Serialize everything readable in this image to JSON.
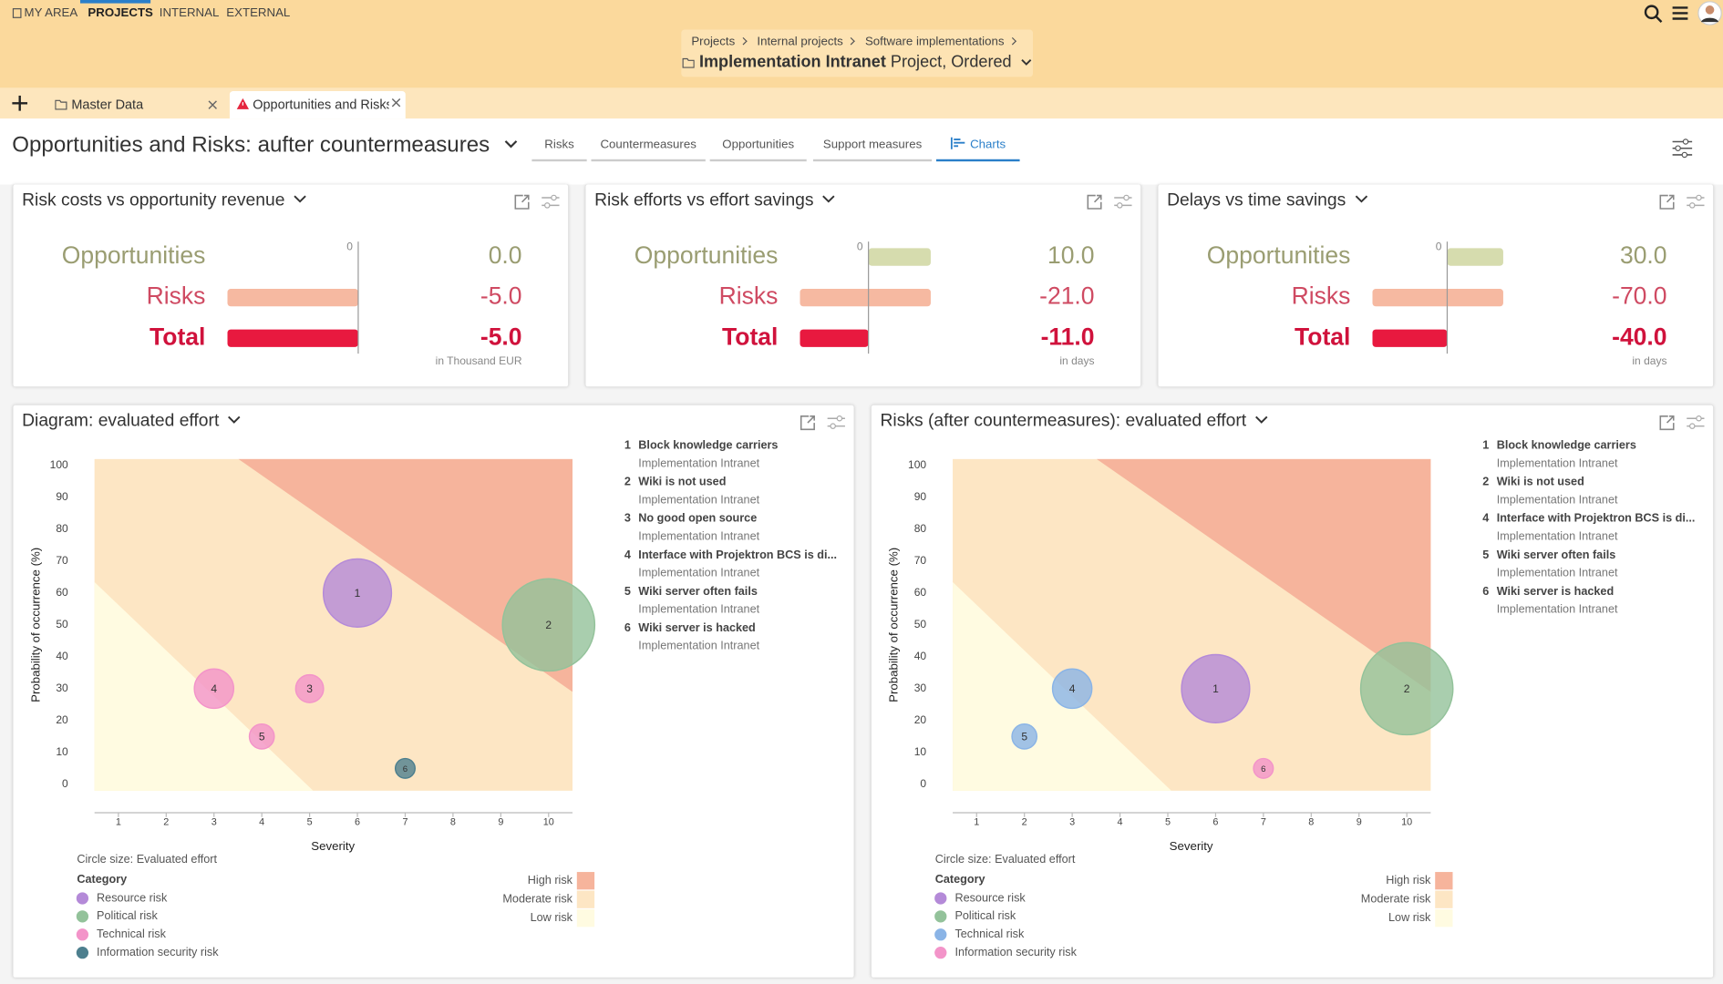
{
  "nav": {
    "items": [
      "MY AREA",
      "PROJECTS",
      "INTERNAL",
      "EXTERNAL"
    ]
  },
  "breadcrumb": [
    "Projects",
    "Internal projects",
    "Software implementations"
  ],
  "project": {
    "name": "Implementation Intranet",
    "details": "Project, Ordered"
  },
  "tabs": [
    "Master Data",
    "Opportunities and Risks"
  ],
  "page_title": "Opportunities and Risks: aufter countermeasures",
  "view_tabs": [
    "Risks",
    "Countermeasures",
    "Opportunities",
    "Support measures",
    "Charts"
  ],
  "summary_panels": [
    {
      "title": "Risk costs vs opportunity revenue",
      "rows": [
        "Opportunities",
        "Risks",
        "Total"
      ],
      "values": [
        0,
        -5,
        -5
      ],
      "value_labels": [
        "0.0",
        "-5.0",
        "-5.0"
      ],
      "axis_label": 0,
      "unit": "in Thousand EUR"
    },
    {
      "title": "Risk efforts vs effort savings",
      "rows": [
        "Opportunities",
        "Risks",
        "Total"
      ],
      "values": [
        10,
        -21,
        -11
      ],
      "value_labels": [
        "10.0",
        "-21.0",
        "-11.0"
      ],
      "axis_label": 0,
      "unit": "in days"
    },
    {
      "title": "Delays vs time savings",
      "rows": [
        "Opportunities",
        "Risks",
        "Total"
      ],
      "values": [
        30,
        -70,
        -40
      ],
      "value_labels": [
        "30.0",
        "-70.0",
        "-40.0"
      ],
      "axis_label": 0,
      "unit": "in days"
    }
  ],
  "charts": [
    {
      "type": "bubble",
      "title": "Diagram: evaluated effort",
      "xlabel": "Severity",
      "ylabel": "Probability of occurrence (%)",
      "size_label": "Circle size: Evaluated effort",
      "legend_title": "Category",
      "categories": [
        {
          "name": "Resource risk",
          "color": "#b48ad8"
        },
        {
          "name": "Political risk",
          "color": "#93c29a"
        },
        {
          "name": "Technical risk",
          "color": "#f394c9"
        },
        {
          "name": "Information security risk",
          "color": "#4d7f8e"
        }
      ],
      "zones": [
        "High risk",
        "Moderate risk",
        "Low risk"
      ],
      "zone_colors": [
        "#f6b49c",
        "#fde6c4",
        "#fffbe1"
      ],
      "xlim": [
        0.5,
        10.5
      ],
      "ylim": [
        -2,
        102
      ],
      "xticks": [
        1,
        2,
        3,
        4,
        5,
        6,
        7,
        8,
        9,
        10
      ],
      "yticks": [
        0,
        10,
        20,
        30,
        40,
        50,
        60,
        70,
        80,
        90,
        100
      ],
      "points": [
        {
          "label": "1",
          "x": 6,
          "y": 60,
          "size": 30,
          "category": "Resource risk"
        },
        {
          "label": "2",
          "x": 10,
          "y": 50,
          "size": 55,
          "category": "Political risk"
        },
        {
          "label": "3",
          "x": 5,
          "y": 30,
          "size": 5,
          "category": "Technical risk"
        },
        {
          "label": "4",
          "x": 3,
          "y": 30,
          "size": 10,
          "category": "Technical risk"
        },
        {
          "label": "5",
          "x": 4,
          "y": 15,
          "size": 4,
          "category": "Technical risk"
        },
        {
          "label": "6",
          "x": 7,
          "y": 5,
          "size": 2.5,
          "category": "Information security risk"
        }
      ],
      "list": [
        {
          "number": "1",
          "title": "Block knowledge carriers",
          "subtitle": "Implementation Intranet"
        },
        {
          "number": "2",
          "title": "Wiki is not used",
          "subtitle": "Implementation Intranet"
        },
        {
          "number": "3",
          "title": "No good open source",
          "subtitle": "Implementation Intranet"
        },
        {
          "number": "4",
          "title": "Interface with Projektron BCS is di...",
          "subtitle": "Implementation Intranet"
        },
        {
          "number": "5",
          "title": "Wiki server often fails",
          "subtitle": "Implementation Intranet"
        },
        {
          "number": "6",
          "title": "Wiki server is hacked",
          "subtitle": "Implementation Intranet"
        }
      ]
    },
    {
      "type": "bubble",
      "title": "Risks (after countermeasures): evaluated effort",
      "xlabel": "Severity",
      "ylabel": "Probability of occurrence (%)",
      "size_label": "Circle size: Evaluated effort",
      "legend_title": "Category",
      "categories": [
        {
          "name": "Resource risk",
          "color": "#b48ad8"
        },
        {
          "name": "Political risk",
          "color": "#93c29a"
        },
        {
          "name": "Technical risk",
          "color": "#8ab4e6"
        },
        {
          "name": "Information security risk",
          "color": "#f394c9"
        }
      ],
      "zones": [
        "High risk",
        "Moderate risk",
        "Low risk"
      ],
      "zone_colors": [
        "#f6b49c",
        "#fde6c4",
        "#fffbe1"
      ],
      "xlim": [
        0.5,
        10.5
      ],
      "ylim": [
        -2,
        102
      ],
      "xticks": [
        1,
        2,
        3,
        4,
        5,
        6,
        7,
        8,
        9,
        10
      ],
      "yticks": [
        0,
        10,
        20,
        30,
        40,
        50,
        60,
        70,
        80,
        90,
        100
      ],
      "points": [
        {
          "label": "1",
          "x": 6,
          "y": 30,
          "size": 30,
          "category": "Resource risk"
        },
        {
          "label": "2",
          "x": 10,
          "y": 30,
          "size": 55,
          "category": "Political risk"
        },
        {
          "label": "4",
          "x": 3,
          "y": 30,
          "size": 10,
          "category": "Technical risk"
        },
        {
          "label": "5",
          "x": 2,
          "y": 15,
          "size": 4,
          "category": "Technical risk"
        },
        {
          "label": "6",
          "x": 7,
          "y": 5,
          "size": 2.5,
          "category": "Information security risk"
        }
      ],
      "list": [
        {
          "number": "1",
          "title": "Block knowledge carriers",
          "subtitle": "Implementation Intranet"
        },
        {
          "number": "2",
          "title": "Wiki is not used",
          "subtitle": "Implementation Intranet"
        },
        {
          "number": "4",
          "title": "Interface with Projektron BCS is di...",
          "subtitle": "Implementation Intranet"
        },
        {
          "number": "5",
          "title": "Wiki server often fails",
          "subtitle": "Implementation Intranet"
        },
        {
          "number": "6",
          "title": "Wiki server is hacked",
          "subtitle": "Implementation Intranet"
        }
      ]
    }
  ]
}
